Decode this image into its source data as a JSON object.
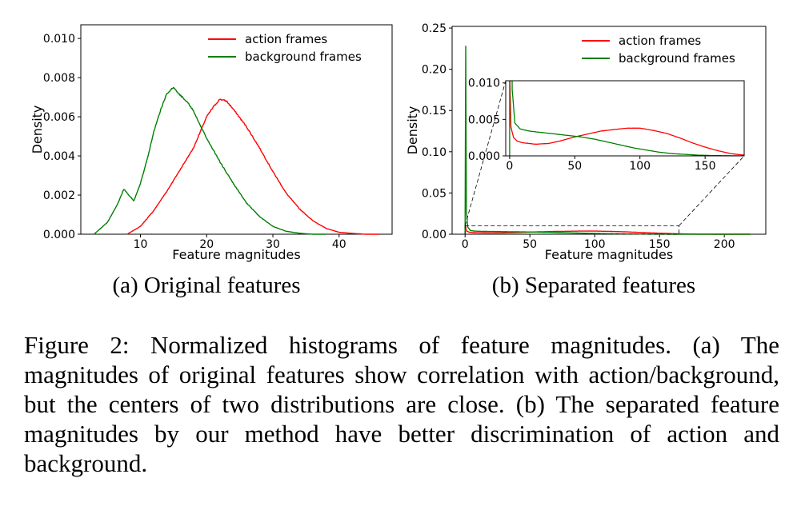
{
  "subcaptions": [
    "(a) Original features",
    "(b) Separated features"
  ],
  "caption": "Figure 2: Normalized histograms of feature magnitudes. (a) The magnitudes of original features show correlation with action/background, but the centers of two distributions are close. (b) The separated feature magnitudes by our method have better discrimination of action and background.",
  "colors": {
    "action": "#ff0000",
    "background": "#008000"
  },
  "chart_data": [
    {
      "type": "line",
      "title": "",
      "xlabel": "Feature magnitudes",
      "ylabel": "Density",
      "xlim": [
        1,
        48
      ],
      "ylim": [
        0,
        0.0107
      ],
      "xticks": [
        10,
        20,
        30,
        40
      ],
      "yticks": [
        0.0,
        0.002,
        0.004,
        0.006,
        0.008,
        0.01
      ],
      "xtick_labels": [
        "10",
        "20",
        "30",
        "40"
      ],
      "ytick_labels": [
        "0.000",
        "0.002",
        "0.004",
        "0.006",
        "0.008",
        "0.010"
      ],
      "legend": "upper-right",
      "series": [
        {
          "name": "action frames",
          "color": "#ff0000",
          "x": [
            8,
            10,
            12,
            14,
            16,
            18,
            19,
            20,
            21,
            22,
            23,
            24,
            26,
            28,
            30,
            32,
            34,
            36,
            38,
            40,
            42,
            44,
            46
          ],
          "y": [
            0.0,
            0.0004,
            0.0012,
            0.0022,
            0.0033,
            0.0044,
            0.0052,
            0.006,
            0.0065,
            0.0069,
            0.0068,
            0.0064,
            0.0055,
            0.0044,
            0.0032,
            0.0021,
            0.0013,
            0.0007,
            0.0003,
            0.0001,
            4e-05,
            0.0,
            0.0
          ]
        },
        {
          "name": "background frames",
          "color": "#008000",
          "x": [
            3,
            5,
            6.5,
            7.5,
            9,
            10,
            11,
            12,
            13,
            14,
            15,
            16,
            17,
            18,
            19,
            20,
            22,
            24,
            26,
            28,
            30,
            32,
            34,
            36,
            38
          ],
          "y": [
            0.0,
            0.0006,
            0.0015,
            0.0023,
            0.0017,
            0.0026,
            0.0038,
            0.0052,
            0.0063,
            0.0072,
            0.0075,
            0.0071,
            0.0068,
            0.0063,
            0.0056,
            0.0049,
            0.0037,
            0.0026,
            0.0016,
            0.0009,
            0.0004,
            0.00015,
            5e-05,
            0.0,
            0.0
          ]
        }
      ]
    },
    {
      "type": "line",
      "title": "",
      "xlabel": "Feature magnitudes",
      "ylabel": "Density",
      "xlim": [
        -10,
        232
      ],
      "ylim": [
        0,
        0.252
      ],
      "xticks": [
        0,
        50,
        100,
        150,
        200
      ],
      "yticks": [
        0.0,
        0.05,
        0.1,
        0.15,
        0.2,
        0.25
      ],
      "xtick_labels": [
        "0",
        "50",
        "100",
        "150",
        "200"
      ],
      "ytick_labels": [
        "0.00",
        "0.05",
        "0.10",
        "0.15",
        "0.20",
        "0.25"
      ],
      "legend": "upper-right",
      "series": [
        {
          "name": "action frames",
          "color": "#ff0000",
          "x": [
            0,
            1,
            3,
            6,
            10,
            20,
            30,
            40,
            50,
            60,
            70,
            80,
            90,
            100,
            110,
            120,
            130,
            140,
            150,
            160,
            170,
            180,
            200,
            220
          ],
          "y": [
            0.012,
            0.004,
            0.0025,
            0.002,
            0.0018,
            0.0016,
            0.0017,
            0.0021,
            0.0026,
            0.003,
            0.0034,
            0.0036,
            0.0038,
            0.0038,
            0.0035,
            0.0031,
            0.0025,
            0.0018,
            0.0012,
            0.0007,
            0.0003,
            0.0001,
            0.0,
            0.0
          ]
        },
        {
          "name": "background frames",
          "color": "#008000",
          "x": [
            0,
            0.5,
            1,
            2,
            4,
            8,
            15,
            25,
            35,
            45,
            55,
            65,
            75,
            85,
            95,
            105,
            115,
            125,
            135,
            145,
            160,
            180,
            200,
            220
          ],
          "y": [
            0.0,
            0.228,
            0.03,
            0.009,
            0.0045,
            0.0037,
            0.0034,
            0.0032,
            0.003,
            0.0028,
            0.0026,
            0.0023,
            0.0019,
            0.0015,
            0.0011,
            0.0008,
            0.0005,
            0.0003,
            0.0002,
            0.0001,
            3e-05,
            0.0,
            0.0,
            0.0
          ]
        }
      ],
      "inset": {
        "xlim": [
          -3,
          180
        ],
        "ylim": [
          0,
          0.0103
        ],
        "xticks": [
          0,
          50,
          100,
          150
        ],
        "yticks": [
          0.0,
          0.005,
          0.01
        ],
        "xtick_labels": [
          "0",
          "50",
          "100",
          "150"
        ],
        "ytick_labels": [
          "0.000",
          "0.005",
          "0.010"
        ],
        "zoom_x": [
          0,
          165
        ],
        "zoom_y": [
          0,
          0.0103
        ]
      }
    }
  ]
}
